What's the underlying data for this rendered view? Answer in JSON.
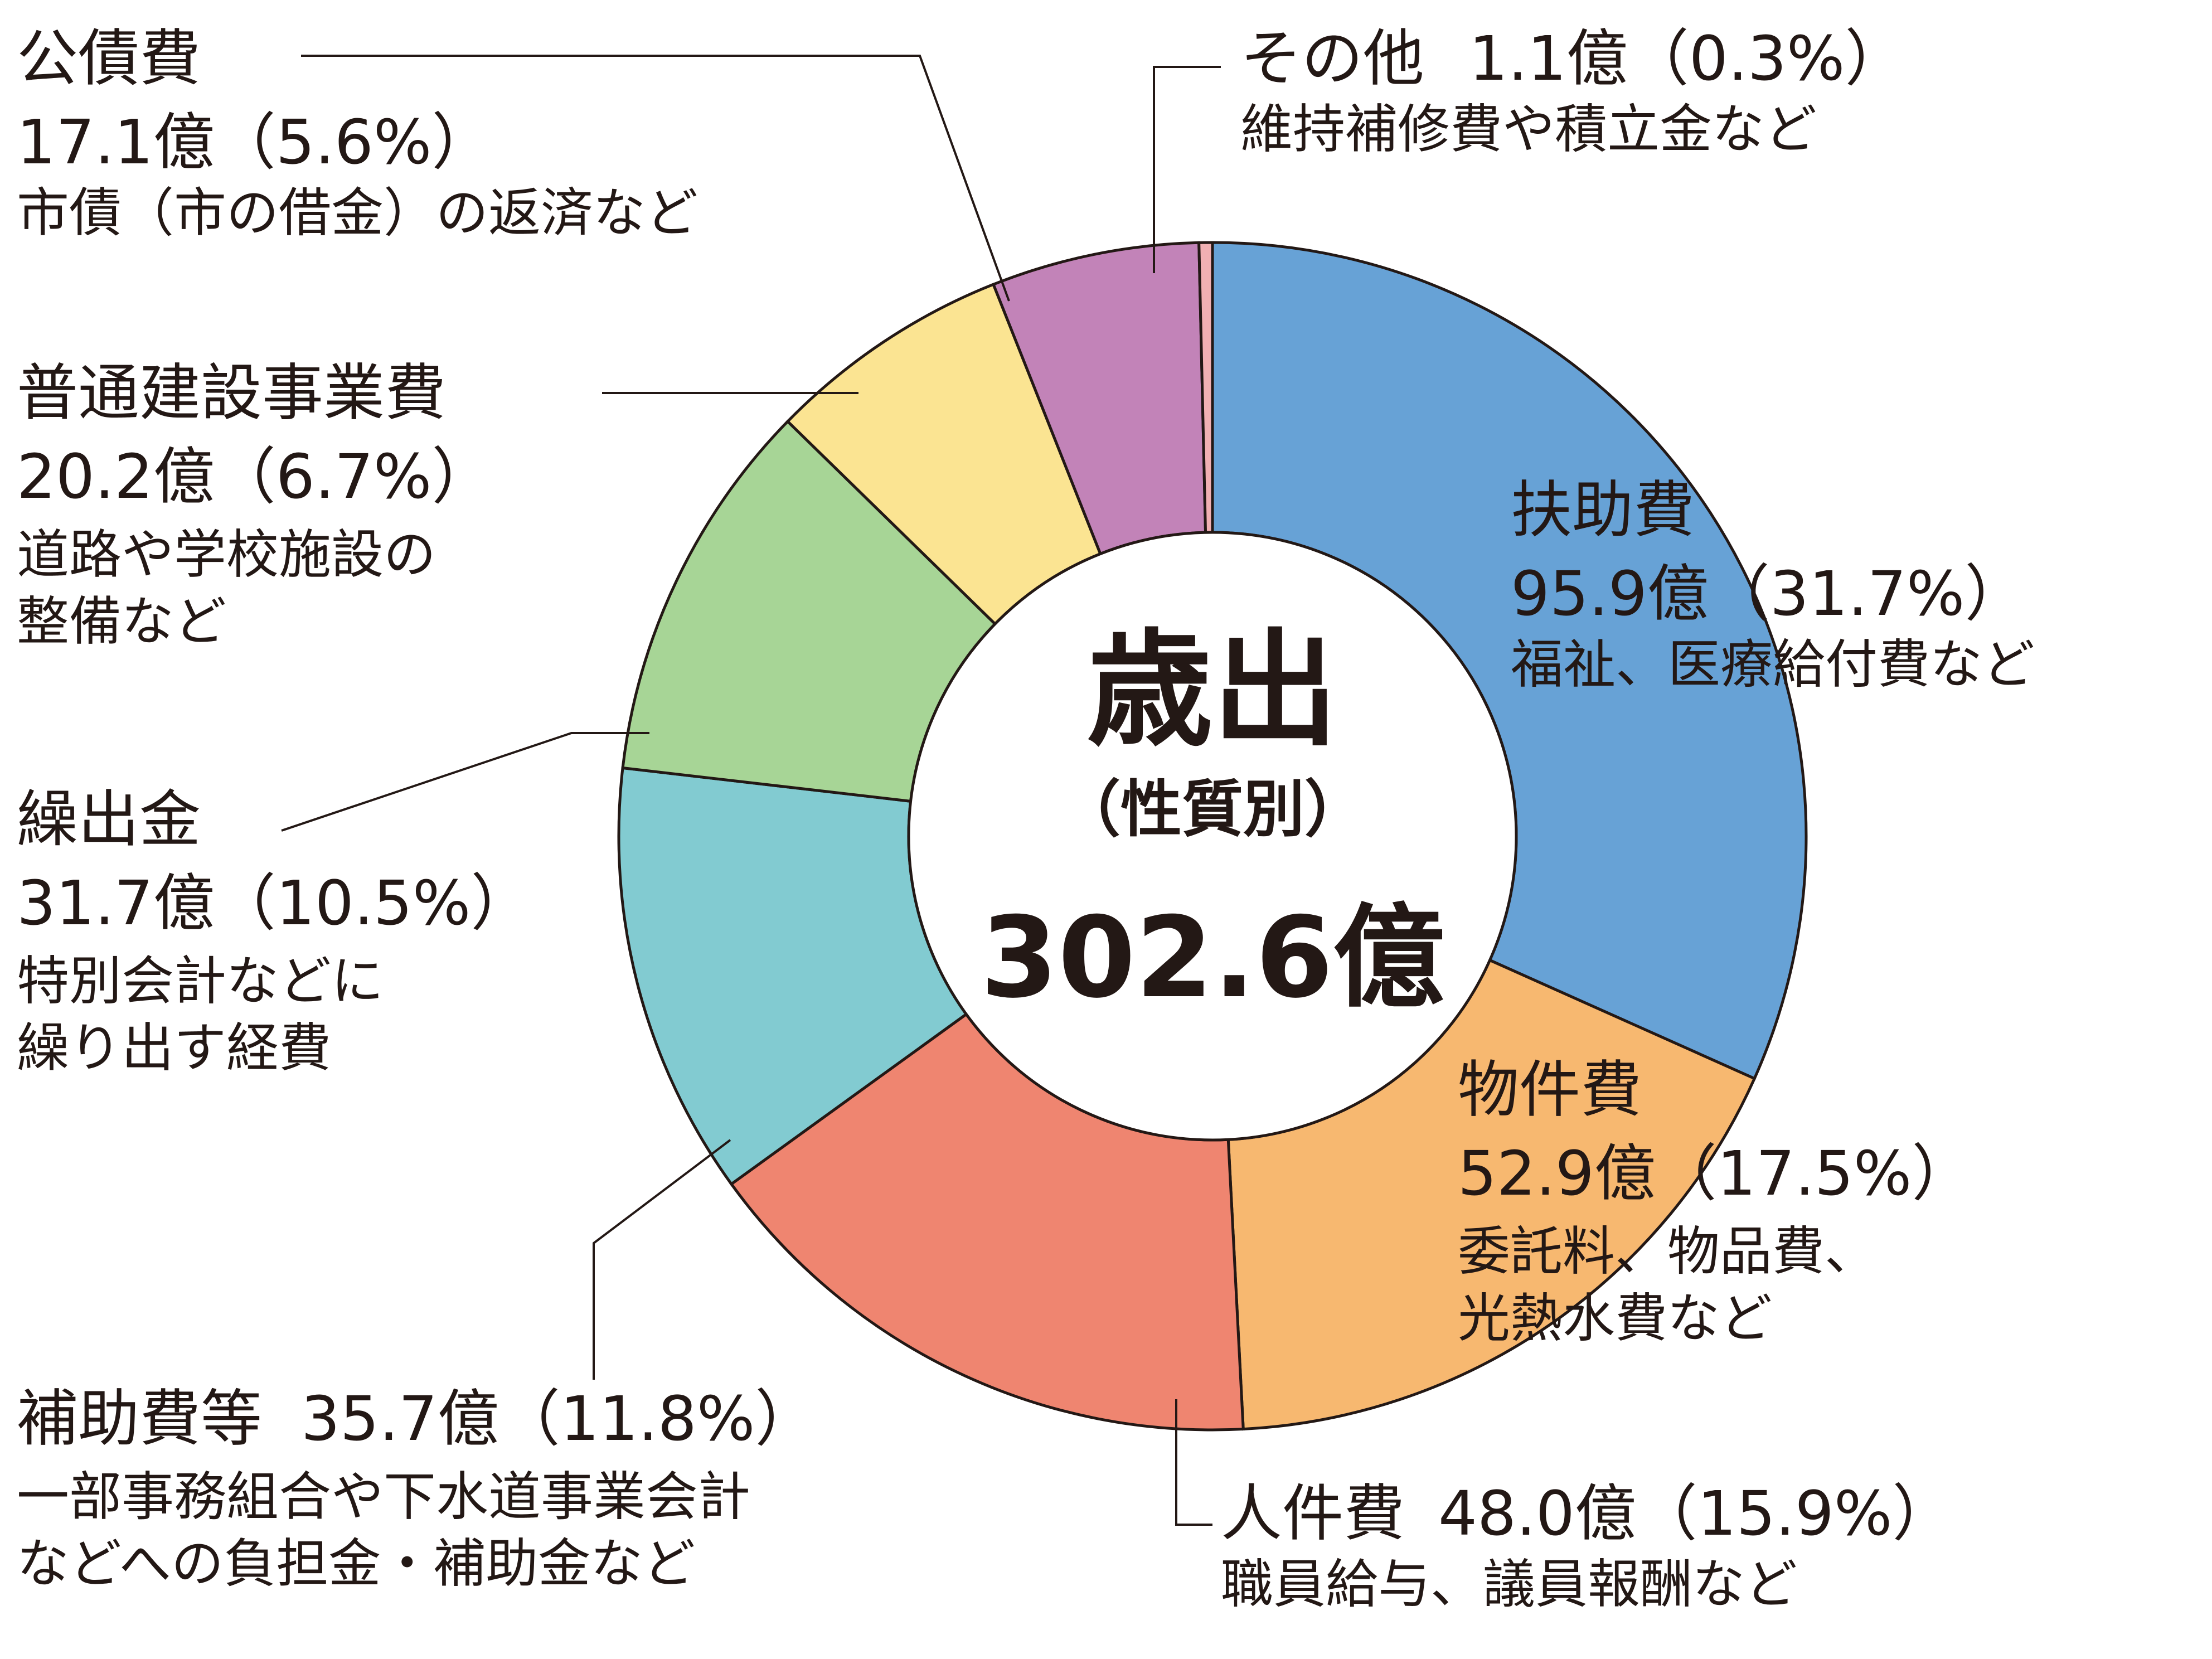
{
  "chart_data": {
    "type": "pie",
    "style": "donut",
    "center": {
      "title": "歳出",
      "subtitle": "（性質別）",
      "total": "302.6億"
    },
    "slices": [
      {
        "name": "扶助費",
        "value_label": "95.9億（31.7%）",
        "note": "福祉、医療給付費など",
        "value": 95.9,
        "percent": 31.7,
        "color": "#67a2d6"
      },
      {
        "name": "物件費",
        "value_label": "52.9億（17.5%）",
        "note": "委託料、物品費、\n光熱水費など",
        "value": 52.9,
        "percent": 17.5,
        "color": "#f7b870"
      },
      {
        "name": "人件費",
        "value_label": "48.0億（15.9%）",
        "note": "職員給与、議員報酬など",
        "value": 48.0,
        "percent": 15.9,
        "color": "#ef8570"
      },
      {
        "name": "補助費等",
        "value_label": "35.7億（11.8%）",
        "note": "一部事務組合や下水道事業会計\nなどへの負担金・補助金など",
        "value": 35.7,
        "percent": 11.8,
        "color": "#82cbd1"
      },
      {
        "name": "繰出金",
        "value_label": "31.7億（10.5%）",
        "note": "特別会計などに\n繰り出す経費",
        "value": 31.7,
        "percent": 10.5,
        "color": "#a7d596"
      },
      {
        "name": "普通建設事業費",
        "value_label": "20.2億（6.7%）",
        "note": "道路や学校施設の\n整備など",
        "value": 20.2,
        "percent": 6.7,
        "color": "#fbe492"
      },
      {
        "name": "公債費",
        "value_label": "17.1億（5.6%）",
        "note": "市債（市の借金）の返済など",
        "value": 17.1,
        "percent": 5.6,
        "color": "#c283b8"
      },
      {
        "name": "その他",
        "value_label": "1.1億（0.3%）",
        "note": "維持補修費や積立金など",
        "value": 1.1,
        "percent": 0.3,
        "color": "#f1b0b3"
      }
    ]
  }
}
